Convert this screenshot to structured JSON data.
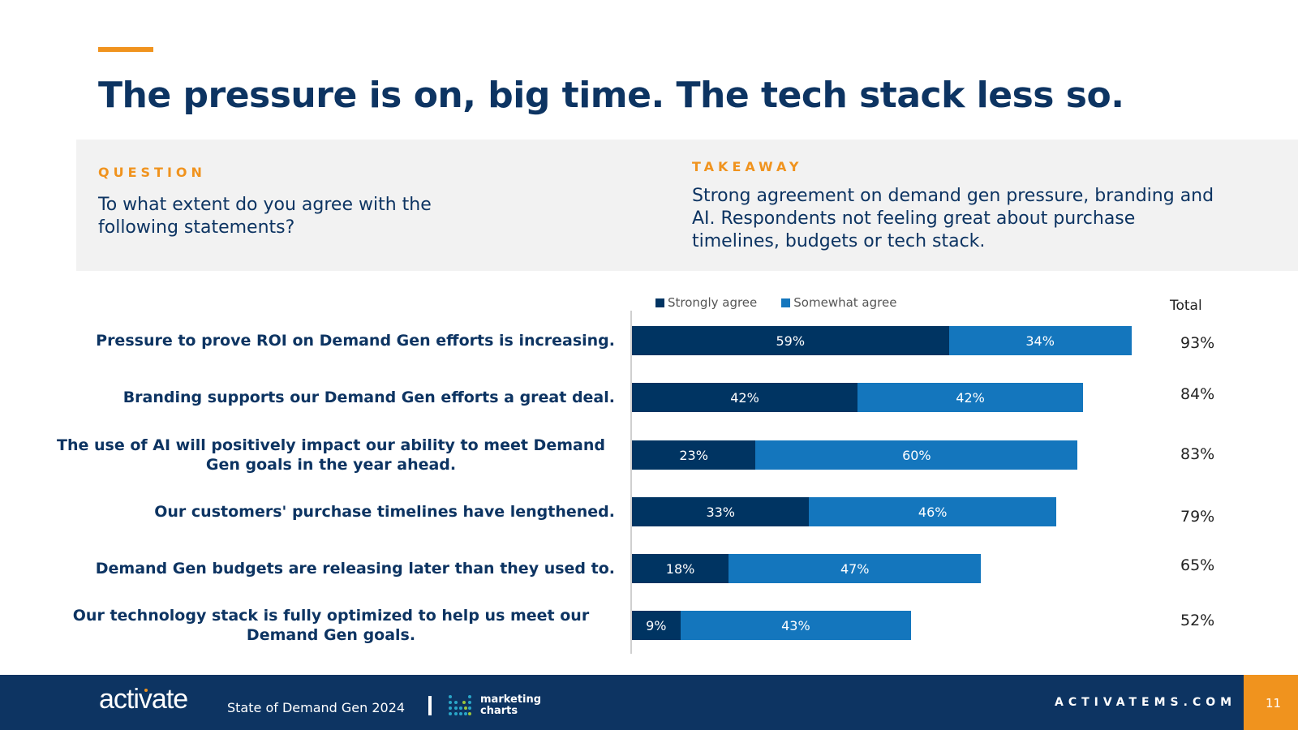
{
  "header": {
    "title": "The pressure is on, big time. The tech stack less so."
  },
  "question": {
    "label": "QUESTION",
    "text": "To what extent do you agree with the following statements?"
  },
  "takeaway": {
    "label": "TAKEAWAY",
    "text": "Strong agreement on demand gen pressure, branding and AI. Respondents not feeling great about purchase timelines, budgets or tech stack."
  },
  "colors": {
    "accent": "#f0931e",
    "navy": "#0d3462",
    "strongly_agree": "#003462",
    "somewhat_agree": "#1476bd",
    "panel_bg": "#f2f2f2"
  },
  "chart_data": {
    "type": "bar",
    "orientation": "horizontal",
    "stacked": true,
    "title": "",
    "xlabel": "",
    "ylabel": "",
    "xlim": [
      0,
      100
    ],
    "grid": false,
    "legend_position": "top",
    "total_header": "Total",
    "categories": [
      "Pressure to prove ROI on Demand Gen efforts is increasing.",
      "Branding supports our Demand Gen efforts a great deal.",
      "The use of AI will positively impact our ability to meet Demand Gen goals in the year ahead.",
      "Our customers' purchase timelines have lengthened.",
      "Demand Gen budgets are releasing later than they used to.",
      "Our technology stack is fully optimized to help us meet our Demand Gen goals."
    ],
    "series": [
      {
        "name": "Strongly agree",
        "values": [
          59,
          42,
          23,
          33,
          18,
          9
        ]
      },
      {
        "name": "Somewhat agree",
        "values": [
          34,
          42,
          60,
          46,
          47,
          43
        ]
      }
    ],
    "totals": [
      93,
      84,
      83,
      79,
      65,
      52
    ],
    "value_suffix": "%"
  },
  "footer": {
    "logo": "activate",
    "report_name": "State of Demand Gen 2024",
    "partner_logo": "marketing charts",
    "partner_line1": "marketing",
    "partner_line2": "charts",
    "site": "ACTIVATEMS.COM",
    "page_number": "11"
  }
}
